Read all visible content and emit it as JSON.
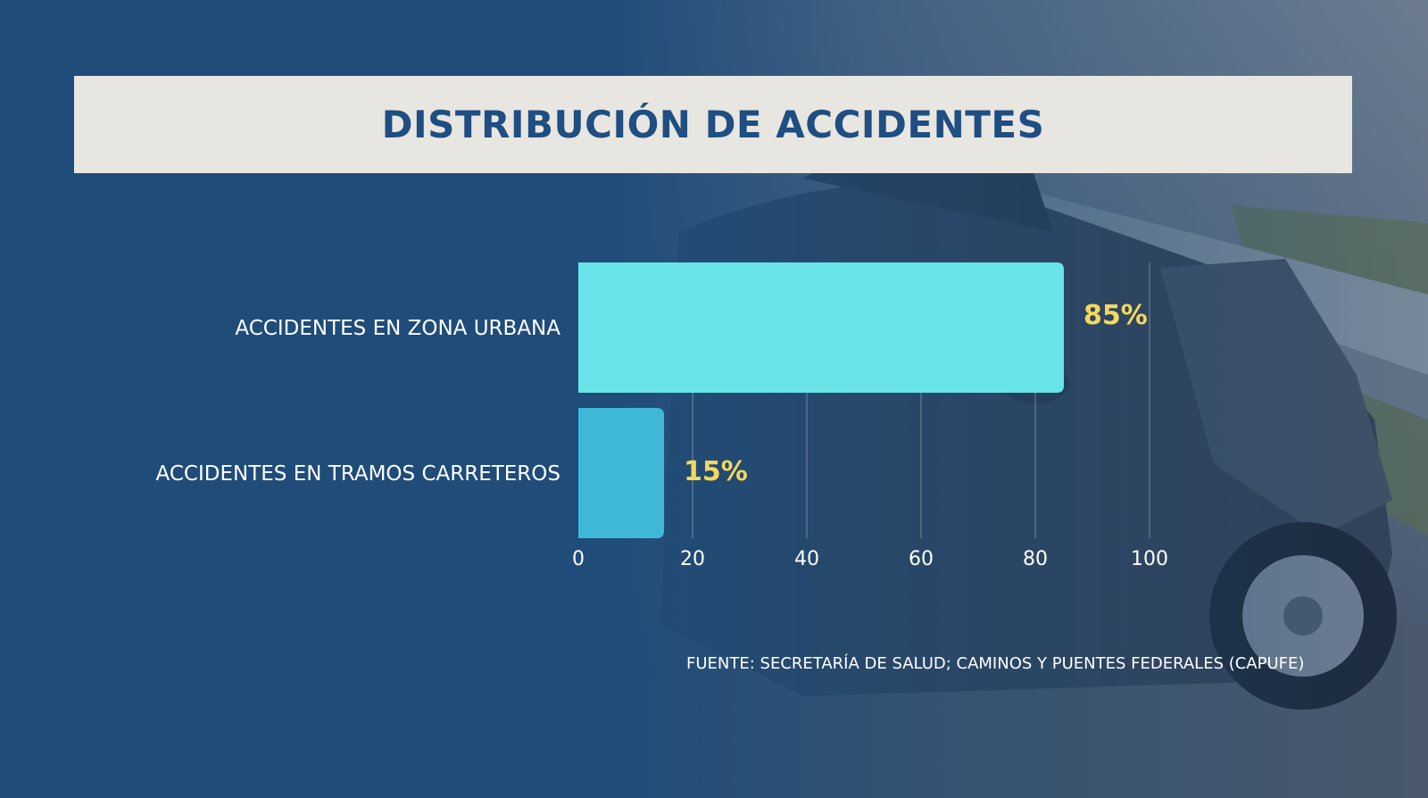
{
  "title": "DISTRIBUCIÓN DE ACCIDENTES",
  "source": "FUENTE: SECRETARÍA DE SALUD; CAMINOS Y PUENTES FEDERALES (CAPUFE)",
  "colors": {
    "background": "#1f4d79",
    "banner": "#e8e6e0",
    "title": "#1e4e82",
    "bar_urban": "#68e3e8",
    "bar_road": "#3fb8d8",
    "value_label": "#f5d85c",
    "text": "#ffffff"
  },
  "chart_data": {
    "type": "bar",
    "orientation": "horizontal",
    "categories": [
      "ACCIDENTES EN ZONA URBANA",
      "ACCIDENTES EN TRAMOS CARRETEROS"
    ],
    "values": [
      85,
      15
    ],
    "value_labels": [
      "85%",
      "15%"
    ],
    "xlim": [
      0,
      100
    ],
    "xticks": [
      "0",
      "20",
      "40",
      "60",
      "80",
      "100"
    ],
    "grid": true
  },
  "background_image": {
    "icon": "crashed-car-photo"
  }
}
